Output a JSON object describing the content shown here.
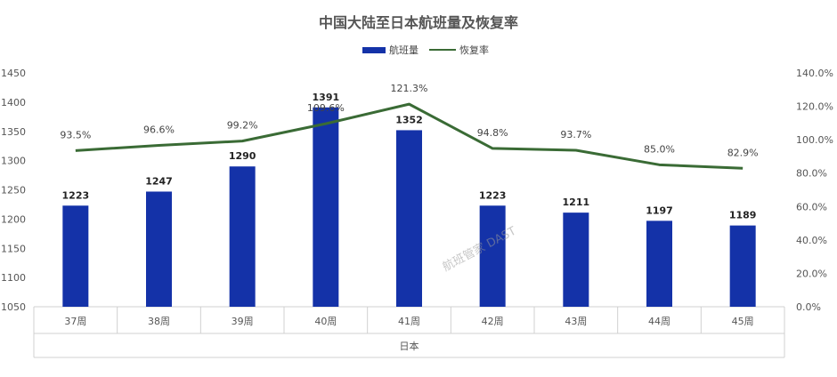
{
  "chart_data": {
    "type": "bar",
    "title": "中国大陆至日本航班量及恢复率",
    "categories": [
      "37周",
      "38周",
      "39周",
      "40周",
      "41周",
      "42周",
      "43周",
      "44周",
      "45周"
    ],
    "group_label": "日本",
    "series": [
      {
        "name": "航班量",
        "type": "bar",
        "axis": "left",
        "color": "#1432A8",
        "values": [
          1223,
          1247,
          1290,
          1391,
          1352,
          1223,
          1211,
          1197,
          1189
        ]
      },
      {
        "name": "恢复率",
        "type": "line",
        "axis": "right",
        "color": "#3A6B35",
        "values": [
          93.5,
          96.6,
          99.2,
          109.6,
          121.3,
          94.8,
          93.7,
          85.0,
          82.9
        ],
        "labels": [
          "93.5%",
          "96.6%",
          "99.2%",
          "109.6%",
          "121.3%",
          "94.8%",
          "93.7%",
          "85.0%",
          "82.9%"
        ]
      }
    ],
    "y_left": {
      "min": 1050,
      "max": 1450,
      "step": 50
    },
    "y_right": {
      "min": 0,
      "max": 140,
      "step": 20,
      "tick_labels": [
        "0.0%",
        "20.0%",
        "40.0%",
        "60.0%",
        "80.0%",
        "100.0%",
        "120.0%",
        "140.0%"
      ]
    },
    "grid": false,
    "legend_position": "top-center",
    "watermark": "航班管家 DAST"
  }
}
